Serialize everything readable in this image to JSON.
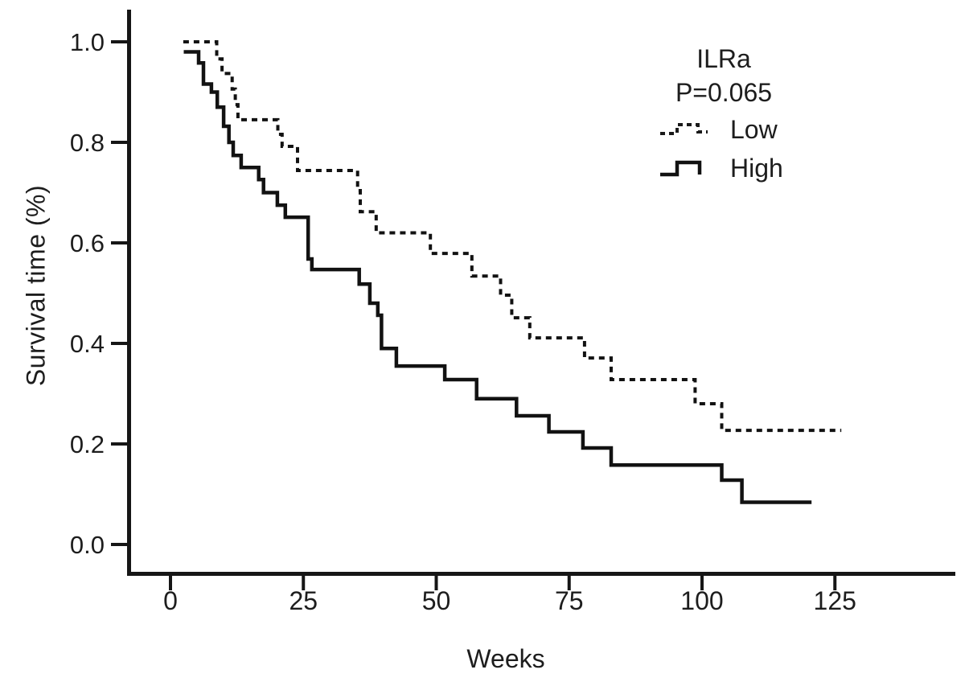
{
  "axes": {
    "y_label": "Survival time (%)",
    "x_label": "Weeks"
  },
  "legend": {
    "title": "ILRa",
    "p_value": "P=0.065",
    "entries": [
      {
        "label": "Low",
        "style": "dashed"
      },
      {
        "label": "High",
        "style": "solid"
      }
    ]
  },
  "chart_data": {
    "type": "line",
    "chart_kind": "kaplan-meier-survival-step",
    "title": "ILRa",
    "annotation": "P=0.065",
    "xlabel": "Weeks",
    "ylabel": "Survival time (%)",
    "x_ticks": [
      0,
      25,
      50,
      75,
      100,
      125
    ],
    "x_tick_labels": [
      "0",
      "25",
      "50",
      "75",
      "100",
      "125"
    ],
    "y_ticks": [
      0.0,
      0.2,
      0.4,
      0.6,
      0.8,
      1.0
    ],
    "y_tick_labels": [
      "0.0",
      "0.2",
      "0.4",
      "0.6",
      "0.8",
      "1.0"
    ],
    "xlim": [
      -8,
      148
    ],
    "ylim": [
      0,
      1.05
    ],
    "grid": false,
    "legend_position": "upper-right",
    "axis_color": "#161616",
    "series": [
      {
        "name": "Low",
        "line_style": "dashed",
        "color": "#121212",
        "start": [
          2.4,
          1.0
        ],
        "steps": [
          [
            8.7,
            0.966
          ],
          [
            9.7,
            0.937
          ],
          [
            11.6,
            0.906
          ],
          [
            12.2,
            0.875
          ],
          [
            12.7,
            0.845
          ],
          [
            20.2,
            0.816
          ],
          [
            21.0,
            0.792
          ],
          [
            23.9,
            0.744
          ],
          [
            35.2,
            0.704
          ],
          [
            35.7,
            0.662
          ],
          [
            38.7,
            0.62
          ],
          [
            48.9,
            0.579
          ],
          [
            56.7,
            0.534
          ],
          [
            62.1,
            0.496
          ],
          [
            64.2,
            0.451
          ],
          [
            67.6,
            0.411
          ],
          [
            77.9,
            0.371
          ],
          [
            82.9,
            0.328
          ],
          [
            98.7,
            0.28
          ],
          [
            103.7,
            0.227
          ]
        ],
        "end_week": 126.2
      },
      {
        "name": "High",
        "line_style": "solid",
        "color": "#121212",
        "start": [
          2.5,
          0.98
        ],
        "steps": [
          [
            5.3,
            0.958
          ],
          [
            6.2,
            0.916
          ],
          [
            7.7,
            0.9
          ],
          [
            8.8,
            0.87
          ],
          [
            10.0,
            0.832
          ],
          [
            11.0,
            0.8
          ],
          [
            11.8,
            0.774
          ],
          [
            13.3,
            0.75
          ],
          [
            16.6,
            0.726
          ],
          [
            17.5,
            0.7
          ],
          [
            20.1,
            0.675
          ],
          [
            21.6,
            0.651
          ],
          [
            25.9,
            0.568
          ],
          [
            26.6,
            0.547
          ],
          [
            35.5,
            0.518
          ],
          [
            37.5,
            0.48
          ],
          [
            39.0,
            0.456
          ],
          [
            39.7,
            0.39
          ],
          [
            42.5,
            0.355
          ],
          [
            51.6,
            0.328
          ],
          [
            57.6,
            0.29
          ],
          [
            65.1,
            0.256
          ],
          [
            71.2,
            0.224
          ],
          [
            77.6,
            0.192
          ],
          [
            82.9,
            0.158
          ],
          [
            103.7,
            0.128
          ],
          [
            107.5,
            0.084
          ]
        ],
        "end_week": 120.6
      }
    ]
  }
}
